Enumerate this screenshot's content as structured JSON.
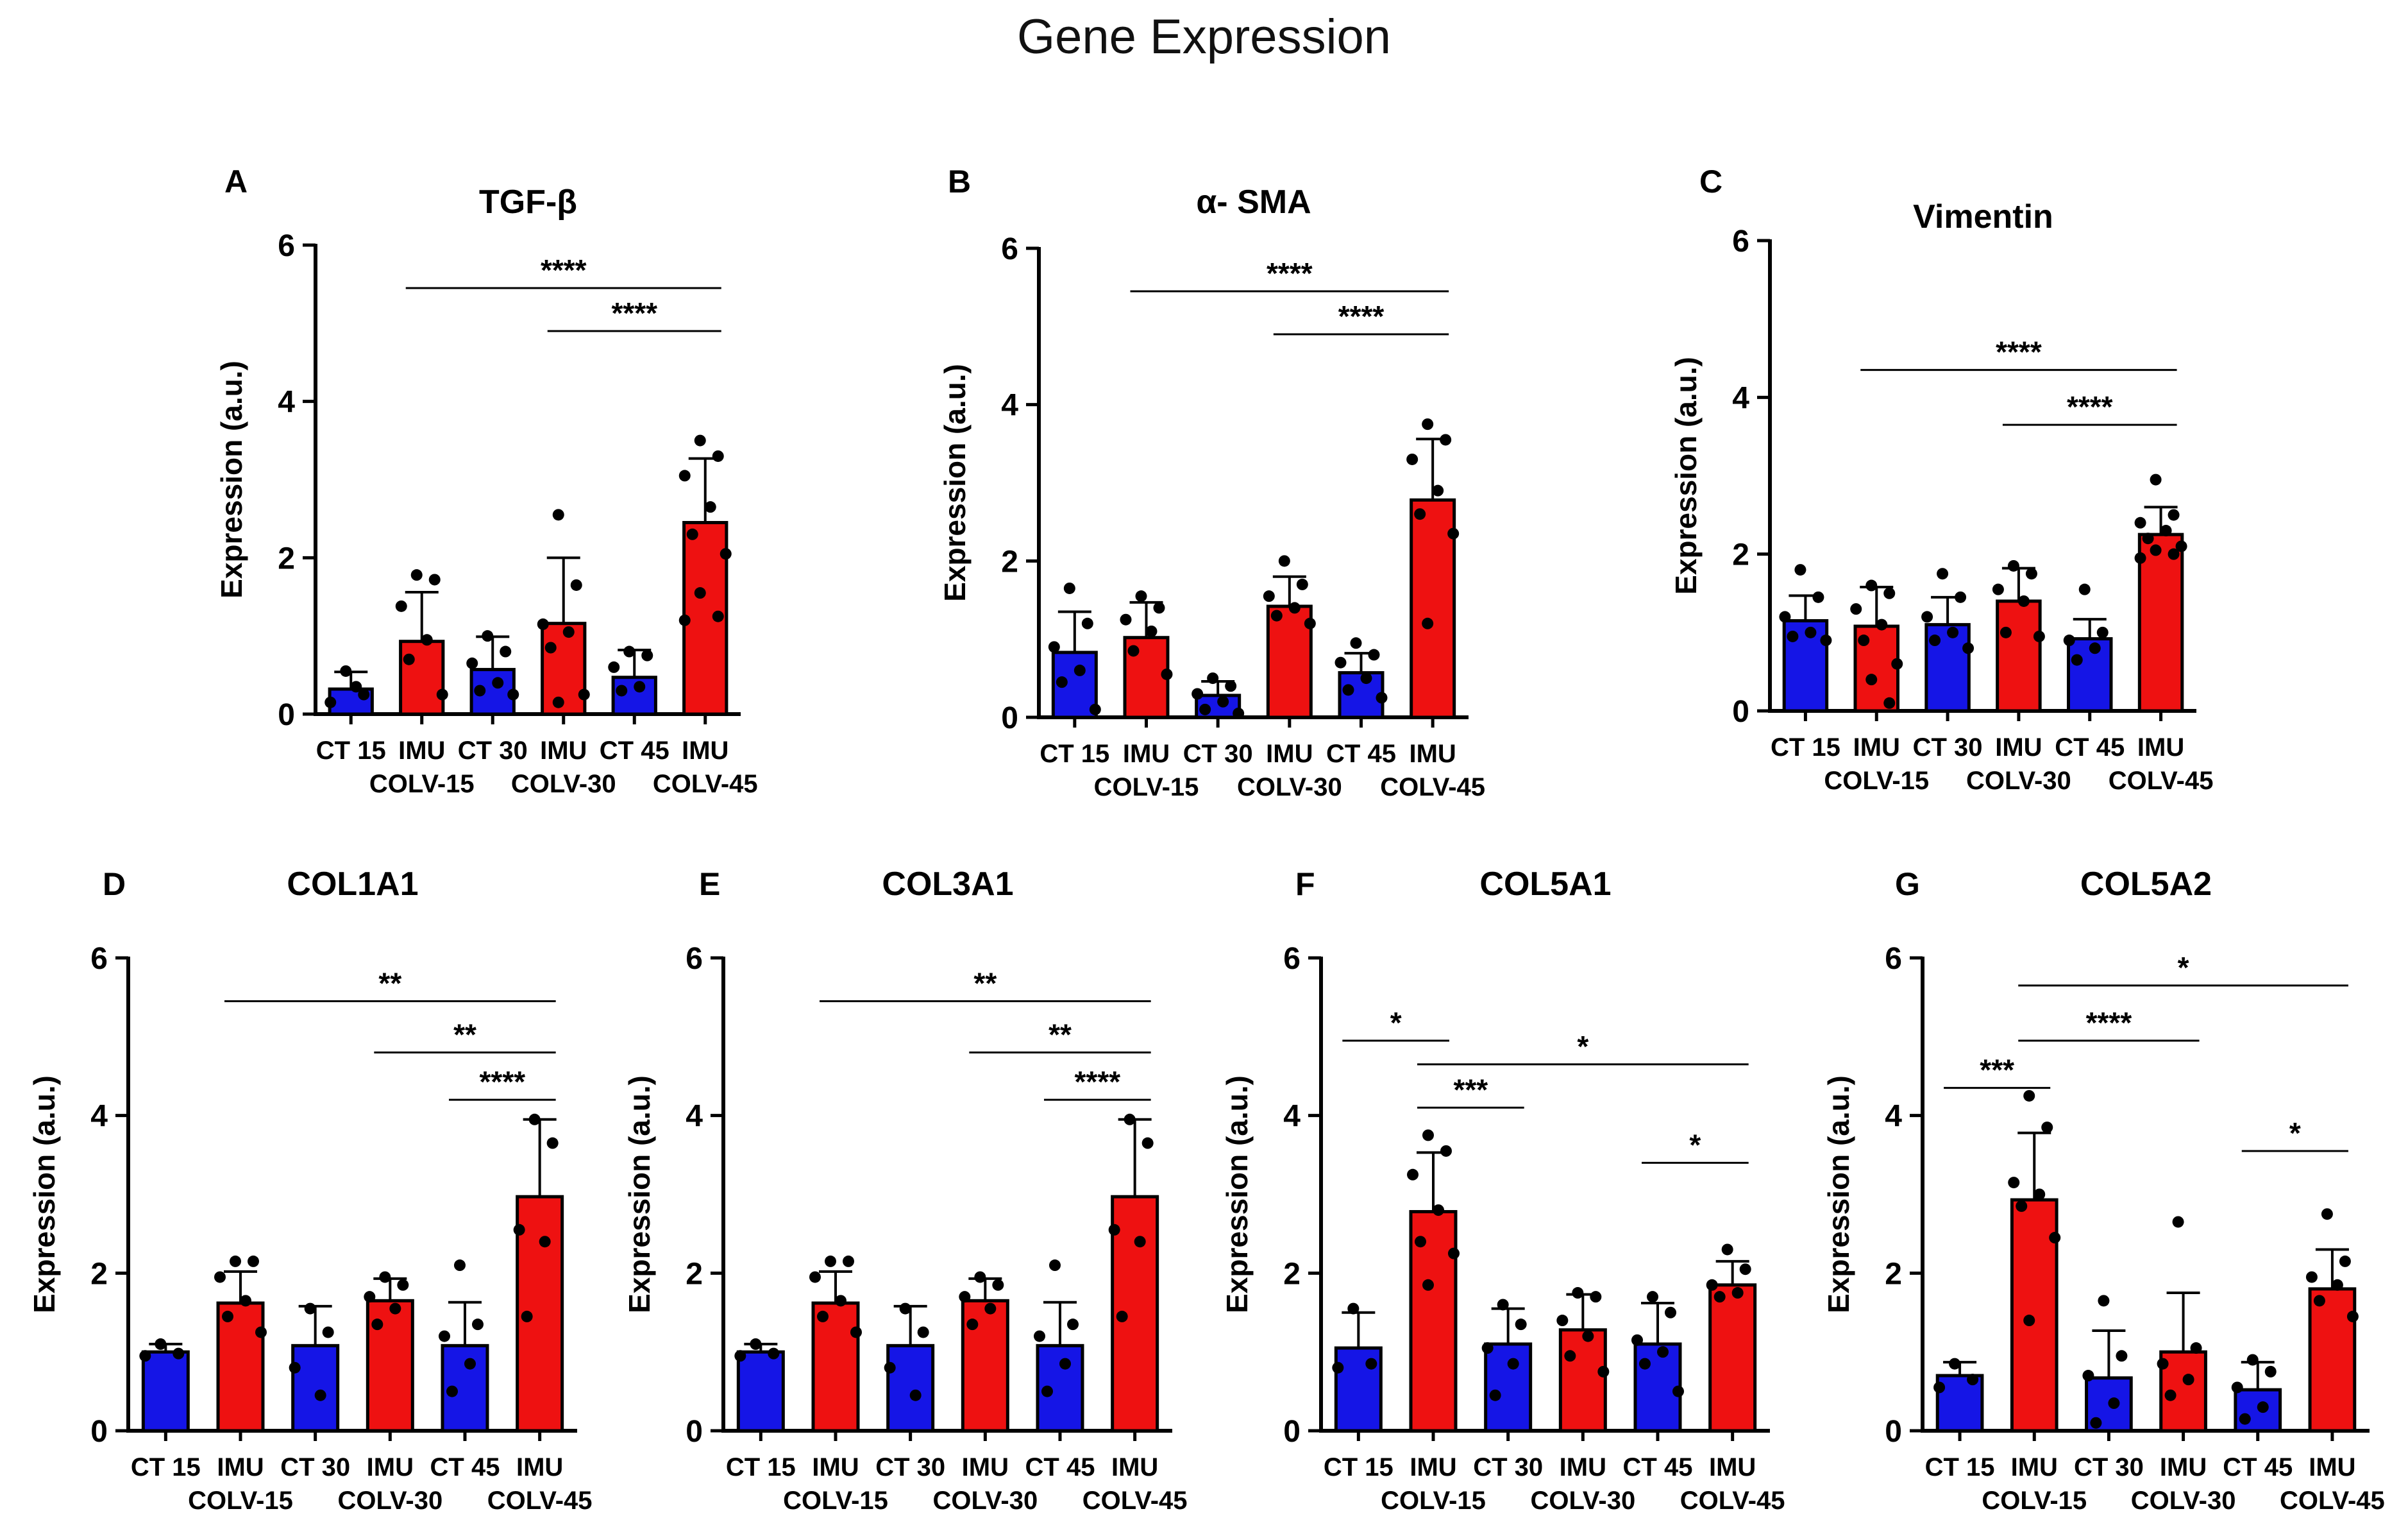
{
  "title": "Gene Expression",
  "colors": {
    "ct": "#1515e6",
    "imu": "#ee1111",
    "text": "#000000"
  },
  "chart_data": [
    {
      "panel": "A",
      "title": "TGF-β",
      "type": "bar",
      "ylabel": "Expression (a.u.)",
      "ylim": [
        0,
        6
      ],
      "yticks": [
        "0",
        "2",
        "4",
        "6"
      ],
      "categories": [
        [
          "CT 15"
        ],
        [
          "IMU",
          "COLV-15"
        ],
        [
          "CT 30"
        ],
        [
          "IMU",
          "COLV-30"
        ],
        [
          "CT 45"
        ],
        [
          "IMU",
          "COLV-45"
        ]
      ],
      "values": [
        0.32,
        0.93,
        0.57,
        1.16,
        0.47,
        2.45
      ],
      "errors": [
        0.22,
        0.63,
        0.42,
        0.84,
        0.35,
        0.82
      ],
      "points": [
        [
          0.55,
          0.25,
          0.15,
          0.35
        ],
        [
          1.78,
          1.72,
          1.38,
          0.95,
          0.7,
          0.25
        ],
        [
          1.0,
          0.8,
          0.65,
          0.4,
          0.3,
          0.25
        ],
        [
          2.55,
          1.65,
          1.15,
          1.05,
          0.85,
          0.25,
          0.15
        ],
        [
          0.8,
          0.75,
          0.6,
          0.35,
          0.3
        ],
        [
          3.5,
          3.3,
          3.05,
          2.65,
          2.3,
          2.05,
          1.55,
          1.25,
          1.2
        ]
      ],
      "brackets": [
        {
          "from": 1,
          "to": 5,
          "y": 5.45,
          "label": "****"
        },
        {
          "from": 3,
          "to": 5,
          "y": 4.9,
          "label": "****"
        }
      ]
    },
    {
      "panel": "B",
      "title": "α- SMA",
      "type": "bar",
      "ylabel": "Expression (a.u.)",
      "ylim": [
        0,
        6
      ],
      "yticks": [
        "0",
        "2",
        "4",
        "6"
      ],
      "categories": [
        [
          "CT 15"
        ],
        [
          "IMU",
          "COLV-15"
        ],
        [
          "CT 30"
        ],
        [
          "IMU",
          "COLV-30"
        ],
        [
          "CT 45"
        ],
        [
          "IMU",
          "COLV-45"
        ]
      ],
      "values": [
        0.83,
        1.02,
        0.28,
        1.42,
        0.57,
        2.78
      ],
      "errors": [
        0.52,
        0.45,
        0.18,
        0.38,
        0.25,
        0.78
      ],
      "points": [
        [
          1.65,
          1.2,
          0.9,
          0.6,
          0.45,
          0.1
        ],
        [
          1.55,
          1.4,
          1.25,
          1.1,
          0.85,
          0.55
        ],
        [
          0.5,
          0.4,
          0.3,
          0.2,
          0.1,
          0.05
        ],
        [
          2.0,
          1.7,
          1.55,
          1.4,
          1.3,
          1.2
        ],
        [
          0.95,
          0.8,
          0.7,
          0.5,
          0.35,
          0.25
        ],
        [
          3.75,
          3.55,
          3.3,
          2.9,
          2.6,
          2.35,
          1.2
        ]
      ],
      "brackets": [
        {
          "from": 1,
          "to": 5,
          "y": 5.45,
          "label": "****"
        },
        {
          "from": 3,
          "to": 5,
          "y": 4.9,
          "label": "****"
        }
      ]
    },
    {
      "panel": "C",
      "title": "Vimentin",
      "type": "bar",
      "ylabel": "Expression (a.u.)",
      "ylim": [
        0,
        6
      ],
      "yticks": [
        "0",
        "2",
        "4",
        "6"
      ],
      "categories": [
        [
          "CT 15"
        ],
        [
          "IMU",
          "COLV-15"
        ],
        [
          "CT 30"
        ],
        [
          "IMU",
          "COLV-30"
        ],
        [
          "CT 45"
        ],
        [
          "IMU",
          "COLV-45"
        ]
      ],
      "values": [
        1.15,
        1.08,
        1.1,
        1.4,
        0.92,
        2.25
      ],
      "errors": [
        0.32,
        0.5,
        0.35,
        0.42,
        0.25,
        0.35
      ],
      "points": [
        [
          1.8,
          1.45,
          1.2,
          1.0,
          0.95,
          0.9
        ],
        [
          1.6,
          1.5,
          1.3,
          1.1,
          0.9,
          0.6,
          0.4,
          0.1
        ],
        [
          1.75,
          1.45,
          1.2,
          1.0,
          0.9,
          0.8
        ],
        [
          1.85,
          1.75,
          1.55,
          1.4,
          1.0,
          0.95
        ],
        [
          1.55,
          1.0,
          0.9,
          0.8,
          0.65
        ],
        [
          2.95,
          2.5,
          2.4,
          2.3,
          2.2,
          2.1,
          2.05,
          2.0,
          1.95
        ]
      ],
      "brackets": [
        {
          "from": 1,
          "to": 5,
          "y": 4.35,
          "label": "****"
        },
        {
          "from": 3,
          "to": 5,
          "y": 3.65,
          "label": "****"
        }
      ]
    },
    {
      "panel": "D",
      "title": "COL1A1",
      "type": "bar",
      "ylabel": "Expression (a.u.)",
      "ylim": [
        0,
        6
      ],
      "yticks": [
        "0",
        "2",
        "4",
        "6"
      ],
      "categories": [
        [
          "CT 15"
        ],
        [
          "IMU",
          "COLV-15"
        ],
        [
          "CT 30"
        ],
        [
          "IMU",
          "COLV-30"
        ],
        [
          "CT 45"
        ],
        [
          "IMU",
          "COLV-45"
        ]
      ],
      "values": [
        1.0,
        1.62,
        1.08,
        1.65,
        1.08,
        2.97
      ],
      "errors": [
        0.1,
        0.4,
        0.5,
        0.28,
        0.55,
        0.98
      ],
      "points": [
        [
          1.1,
          0.98,
          0.95
        ],
        [
          2.15,
          2.15,
          1.95,
          1.65,
          1.45,
          1.25
        ],
        [
          1.55,
          1.25,
          0.8,
          0.45
        ],
        [
          1.95,
          1.85,
          1.7,
          1.55,
          1.35
        ],
        [
          2.1,
          1.35,
          1.2,
          0.85,
          0.5
        ],
        [
          3.95,
          3.65,
          2.55,
          2.4,
          1.45
        ]
      ],
      "brackets": [
        {
          "from": 1,
          "to": 5,
          "y": 5.45,
          "label": "**"
        },
        {
          "from": 3,
          "to": 5,
          "y": 4.8,
          "label": "**"
        },
        {
          "from": 4,
          "to": 5,
          "y": 4.2,
          "label": "****"
        }
      ]
    },
    {
      "panel": "E",
      "title": "COL3A1",
      "type": "bar",
      "ylabel": "Expression (a.u.)",
      "ylim": [
        0,
        6
      ],
      "yticks": [
        "0",
        "2",
        "4",
        "6"
      ],
      "categories": [
        [
          "CT 15"
        ],
        [
          "IMU",
          "COLV-15"
        ],
        [
          "CT 30"
        ],
        [
          "IMU",
          "COLV-30"
        ],
        [
          "CT 45"
        ],
        [
          "IMU",
          "COLV-45"
        ]
      ],
      "values": [
        1.0,
        1.62,
        1.08,
        1.65,
        1.08,
        2.97
      ],
      "errors": [
        0.1,
        0.4,
        0.5,
        0.28,
        0.55,
        0.98
      ],
      "points": [
        [
          1.1,
          0.98,
          0.95
        ],
        [
          2.15,
          2.15,
          1.95,
          1.65,
          1.45,
          1.25
        ],
        [
          1.55,
          1.25,
          0.8,
          0.45
        ],
        [
          1.95,
          1.85,
          1.7,
          1.55,
          1.35
        ],
        [
          2.1,
          1.35,
          1.2,
          0.85,
          0.5
        ],
        [
          3.95,
          3.65,
          2.55,
          2.4,
          1.45
        ]
      ],
      "brackets": [
        {
          "from": 1,
          "to": 5,
          "y": 5.45,
          "label": "**"
        },
        {
          "from": 3,
          "to": 5,
          "y": 4.8,
          "label": "**"
        },
        {
          "from": 4,
          "to": 5,
          "y": 4.2,
          "label": "****"
        }
      ]
    },
    {
      "panel": "F",
      "title": "COL5A1",
      "type": "bar",
      "ylabel": "Expression (a.u.)",
      "ylim": [
        0,
        6
      ],
      "yticks": [
        "0",
        "2",
        "4",
        "6"
      ],
      "categories": [
        [
          "CT 15"
        ],
        [
          "IMU",
          "COLV-15"
        ],
        [
          "CT 30"
        ],
        [
          "IMU",
          "COLV-30"
        ],
        [
          "CT 45"
        ],
        [
          "IMU",
          "COLV-45"
        ]
      ],
      "values": [
        1.05,
        2.78,
        1.1,
        1.28,
        1.1,
        1.85
      ],
      "errors": [
        0.45,
        0.75,
        0.45,
        0.45,
        0.52,
        0.3
      ],
      "points": [
        [
          1.55,
          0.85,
          0.8
        ],
        [
          3.75,
          3.55,
          3.25,
          2.8,
          2.4,
          2.25,
          1.85
        ],
        [
          1.6,
          1.35,
          1.05,
          0.85,
          0.45
        ],
        [
          1.75,
          1.7,
          1.4,
          1.2,
          0.95,
          0.75
        ],
        [
          1.7,
          1.5,
          1.15,
          1.0,
          0.85,
          0.5
        ],
        [
          2.3,
          2.05,
          1.85,
          1.75,
          1.7
        ]
      ],
      "brackets": [
        {
          "from": 0,
          "to": 1,
          "y": 4.95,
          "label": "*"
        },
        {
          "from": 1,
          "to": 5,
          "y": 4.65,
          "label": "*"
        },
        {
          "from": 1,
          "to": 2,
          "y": 4.1,
          "label": "***"
        },
        {
          "from": 4,
          "to": 5,
          "y": 3.4,
          "label": "*"
        }
      ]
    },
    {
      "panel": "G",
      "title": "COL5A2",
      "type": "bar",
      "ylabel": "Expression (a.u.)",
      "ylim": [
        0,
        6
      ],
      "yticks": [
        "0",
        "2",
        "4",
        "6"
      ],
      "categories": [
        [
          "CT 15"
        ],
        [
          "IMU",
          "COLV-15"
        ],
        [
          "CT 30"
        ],
        [
          "IMU",
          "COLV-30"
        ],
        [
          "CT 45"
        ],
        [
          "IMU",
          "COLV-45"
        ]
      ],
      "values": [
        0.7,
        2.93,
        0.67,
        1.0,
        0.52,
        1.8
      ],
      "errors": [
        0.17,
        0.85,
        0.6,
        0.75,
        0.35,
        0.5
      ],
      "points": [
        [
          0.85,
          0.65,
          0.55
        ],
        [
          4.25,
          3.85,
          3.15,
          3.0,
          2.85,
          2.45,
          1.4
        ],
        [
          1.65,
          0.95,
          0.7,
          0.35,
          0.1
        ],
        [
          2.65,
          1.05,
          0.85,
          0.65,
          0.45
        ],
        [
          0.9,
          0.75,
          0.55,
          0.3,
          0.15
        ],
        [
          2.75,
          2.15,
          1.95,
          1.85,
          1.65,
          1.45
        ]
      ],
      "brackets": [
        {
          "from": 1,
          "to": 5,
          "y": 5.65,
          "label": "*"
        },
        {
          "from": 1,
          "to": 3,
          "y": 4.95,
          "label": "****"
        },
        {
          "from": 0,
          "to": 1,
          "y": 4.35,
          "label": "***"
        },
        {
          "from": 4,
          "to": 5,
          "y": 3.55,
          "label": "*"
        }
      ]
    }
  ]
}
